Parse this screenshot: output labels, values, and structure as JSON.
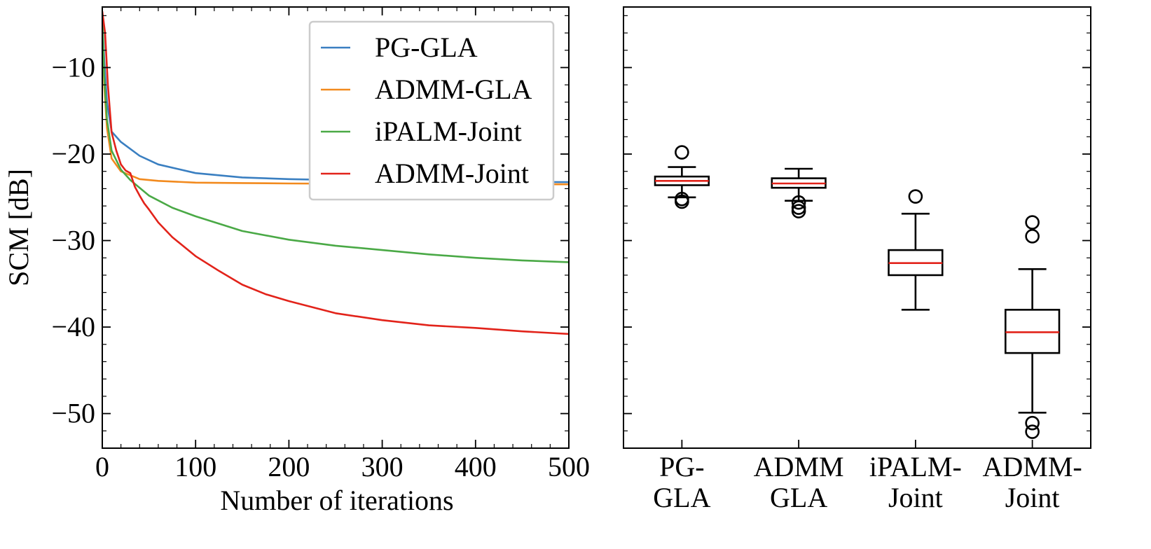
{
  "chart_data": [
    {
      "type": "line",
      "xlabel": "Number of iterations",
      "ylabel": "SCM [dB]",
      "xlim": [
        0,
        500
      ],
      "ylim": [
        -54,
        -3
      ],
      "xticks": [
        0,
        100,
        200,
        300,
        400,
        500
      ],
      "yticks": [
        -10,
        -20,
        -30,
        -40,
        -50
      ],
      "xtick_labels": [
        "0",
        "100",
        "200",
        "300",
        "400",
        "500"
      ],
      "ytick_labels": [
        "−10",
        "−20",
        "−30",
        "−40",
        "−50"
      ],
      "grid": false,
      "legend_position": "top-right",
      "series": [
        {
          "name": "PG-GLA",
          "color": "#3a7fc1",
          "x": [
            0,
            2,
            5,
            10,
            20,
            40,
            60,
            100,
            150,
            200,
            300,
            400,
            500
          ],
          "y": [
            -4,
            -9,
            -14,
            -17.4,
            -18.6,
            -20.2,
            -21.2,
            -22.2,
            -22.7,
            -22.9,
            -23.1,
            -23.2,
            -23.25
          ]
        },
        {
          "name": "ADMM-GLA",
          "color": "#f28a1e",
          "x": [
            0,
            2,
            5,
            10,
            20,
            40,
            60,
            100,
            150,
            200,
            300,
            400,
            500
          ],
          "y": [
            -4,
            -12,
            -17,
            -20.5,
            -22.0,
            -22.9,
            -23.1,
            -23.3,
            -23.35,
            -23.4,
            -23.45,
            -23.5,
            -23.5
          ]
        },
        {
          "name": "iPALM-Joint",
          "color": "#4aa946",
          "x": [
            0,
            2,
            5,
            10,
            20,
            30,
            50,
            75,
            100,
            150,
            200,
            250,
            300,
            350,
            400,
            450,
            500
          ],
          "y": [
            -4,
            -11,
            -16,
            -19.6,
            -21.8,
            -23.0,
            -24.8,
            -26.2,
            -27.2,
            -28.9,
            -29.9,
            -30.6,
            -31.1,
            -31.6,
            -32.0,
            -32.3,
            -32.5
          ]
        },
        {
          "name": "ADMM-Joint",
          "color": "#e2231a",
          "x": [
            0,
            3,
            6,
            10,
            15,
            20,
            25,
            30,
            35,
            40,
            45,
            50,
            60,
            75,
            100,
            125,
            150,
            175,
            200,
            250,
            300,
            350,
            400,
            450,
            500
          ],
          "y": [
            -3.5,
            -6,
            -12,
            -17.5,
            -19.6,
            -21.2,
            -21.9,
            -22.2,
            -23.8,
            -24.8,
            -25.7,
            -26.4,
            -27.9,
            -29.6,
            -31.8,
            -33.5,
            -35.1,
            -36.2,
            -37.0,
            -38.4,
            -39.2,
            -39.8,
            -40.1,
            -40.5,
            -40.8
          ]
        }
      ]
    },
    {
      "type": "box",
      "ylim": [
        -54,
        -3
      ],
      "yticks": [
        -10,
        -20,
        -30,
        -40,
        -50
      ],
      "grid": false,
      "categories": [
        "PG-\nGLA",
        "ADMM\nGLA",
        "iPALM-\nJoint",
        "ADMM-\nJoint"
      ],
      "median_color": "#e2231a",
      "boxes": [
        {
          "whisker_low": -25.0,
          "q1": -23.6,
          "median": -23.1,
          "q3": -22.6,
          "whisker_high": -21.5,
          "outliers": [
            -19.8,
            -25.2,
            -25.5
          ]
        },
        {
          "whisker_low": -25.4,
          "q1": -23.9,
          "median": -23.4,
          "q3": -22.8,
          "whisker_high": -21.7,
          "outliers": [
            -25.6,
            -26.2,
            -26.6
          ]
        },
        {
          "whisker_low": -38.0,
          "q1": -34.0,
          "median": -32.6,
          "q3": -31.1,
          "whisker_high": -26.9,
          "outliers": [
            -24.9
          ]
        },
        {
          "whisker_low": -49.9,
          "q1": -43.0,
          "median": -40.6,
          "q3": -38.0,
          "whisker_high": -33.3,
          "outliers": [
            -27.9,
            -29.5,
            -51.1,
            -52.1
          ]
        }
      ]
    }
  ]
}
